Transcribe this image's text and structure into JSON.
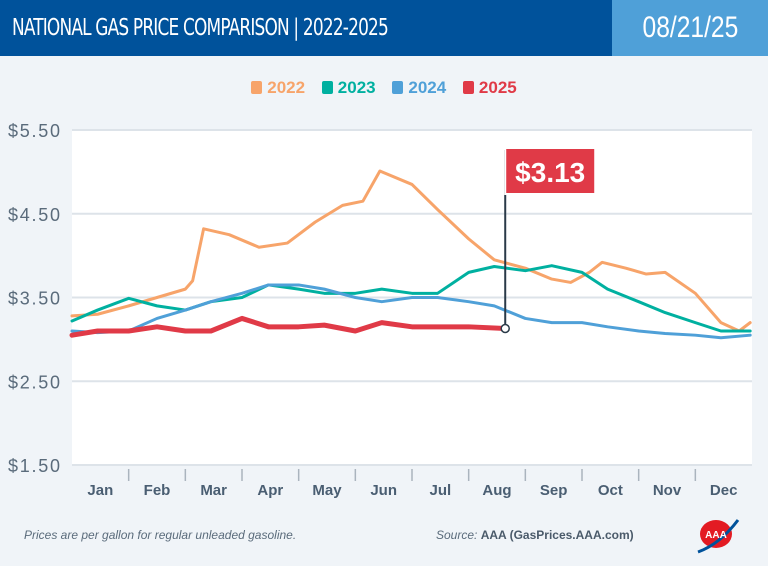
{
  "header": {
    "title": "NATIONAL GAS PRICE COMPARISON | 2022-2025",
    "date": "08/21/25"
  },
  "footer": {
    "note": "Prices are per gallon for regular unleaded gasoline.",
    "source_label": "Source:",
    "source": "AAA (GasPrices.AAA.com)",
    "logo": "AAA"
  },
  "chart_data": {
    "type": "line",
    "title": "NATIONAL GAS PRICE COMPARISON | 2022-2025",
    "ylim": [
      1.5,
      5.5
    ],
    "yticks": [
      "$5.50",
      "$4.50",
      "$3.50",
      "$2.50",
      "$1.50"
    ],
    "ytick_values": [
      5.5,
      4.5,
      3.5,
      2.5,
      1.5
    ],
    "categories": [
      "Jan",
      "Feb",
      "Mar",
      "Apr",
      "May",
      "Jun",
      "Jul",
      "Aug",
      "Sep",
      "Oct",
      "Nov",
      "Dec"
    ],
    "grid": true,
    "legend_position": "top",
    "callout": {
      "label": "$3.13",
      "date": "08-21",
      "value": 3.13,
      "color": "#e03a47"
    },
    "series": [
      {
        "name": "2022",
        "color": "#f7a46a",
        "points": [
          [
            "01-01",
            3.28
          ],
          [
            "01-15",
            3.3
          ],
          [
            "02-01",
            3.4
          ],
          [
            "02-15",
            3.5
          ],
          [
            "03-01",
            3.6
          ],
          [
            "03-05",
            3.7
          ],
          [
            "03-11",
            4.32
          ],
          [
            "03-25",
            4.25
          ],
          [
            "04-10",
            4.1
          ],
          [
            "04-25",
            4.15
          ],
          [
            "05-10",
            4.4
          ],
          [
            "05-25",
            4.6
          ],
          [
            "06-05",
            4.65
          ],
          [
            "06-14",
            5.01
          ],
          [
            "07-01",
            4.85
          ],
          [
            "07-15",
            4.55
          ],
          [
            "08-01",
            4.2
          ],
          [
            "08-15",
            3.95
          ],
          [
            "09-01",
            3.85
          ],
          [
            "09-15",
            3.72
          ],
          [
            "09-25",
            3.68
          ],
          [
            "10-05",
            3.8
          ],
          [
            "10-12",
            3.92
          ],
          [
            "10-25",
            3.85
          ],
          [
            "11-05",
            3.78
          ],
          [
            "11-15",
            3.8
          ],
          [
            "12-01",
            3.55
          ],
          [
            "12-15",
            3.2
          ],
          [
            "12-25",
            3.1
          ],
          [
            "12-31",
            3.2
          ]
        ]
      },
      {
        "name": "2023",
        "color": "#00b0a0",
        "points": [
          [
            "01-01",
            3.22
          ],
          [
            "01-15",
            3.35
          ],
          [
            "02-01",
            3.49
          ],
          [
            "02-15",
            3.4
          ],
          [
            "03-01",
            3.35
          ],
          [
            "03-15",
            3.45
          ],
          [
            "04-01",
            3.5
          ],
          [
            "04-15",
            3.65
          ],
          [
            "05-01",
            3.6
          ],
          [
            "05-15",
            3.55
          ],
          [
            "06-01",
            3.55
          ],
          [
            "06-15",
            3.6
          ],
          [
            "07-01",
            3.55
          ],
          [
            "07-15",
            3.55
          ],
          [
            "08-01",
            3.8
          ],
          [
            "08-15",
            3.87
          ],
          [
            "09-01",
            3.82
          ],
          [
            "09-15",
            3.88
          ],
          [
            "10-01",
            3.8
          ],
          [
            "10-15",
            3.6
          ],
          [
            "11-01",
            3.45
          ],
          [
            "11-15",
            3.32
          ],
          [
            "12-01",
            3.2
          ],
          [
            "12-15",
            3.1
          ],
          [
            "12-31",
            3.1
          ]
        ]
      },
      {
        "name": "2024",
        "color": "#4fa0d8",
        "points": [
          [
            "01-01",
            3.1
          ],
          [
            "01-15",
            3.08
          ],
          [
            "02-01",
            3.1
          ],
          [
            "02-15",
            3.25
          ],
          [
            "03-01",
            3.35
          ],
          [
            "03-15",
            3.45
          ],
          [
            "04-01",
            3.55
          ],
          [
            "04-15",
            3.65
          ],
          [
            "05-01",
            3.65
          ],
          [
            "05-15",
            3.6
          ],
          [
            "06-01",
            3.5
          ],
          [
            "06-15",
            3.45
          ],
          [
            "07-01",
            3.5
          ],
          [
            "07-15",
            3.5
          ],
          [
            "08-01",
            3.45
          ],
          [
            "08-15",
            3.4
          ],
          [
            "09-01",
            3.25
          ],
          [
            "09-15",
            3.2
          ],
          [
            "10-01",
            3.2
          ],
          [
            "10-15",
            3.15
          ],
          [
            "11-01",
            3.1
          ],
          [
            "11-15",
            3.07
          ],
          [
            "12-01",
            3.05
          ],
          [
            "12-15",
            3.02
          ],
          [
            "12-31",
            3.05
          ]
        ]
      },
      {
        "name": "2025",
        "color": "#e03a47",
        "points": [
          [
            "01-01",
            3.05
          ],
          [
            "01-15",
            3.1
          ],
          [
            "02-01",
            3.1
          ],
          [
            "02-15",
            3.15
          ],
          [
            "03-01",
            3.1
          ],
          [
            "03-15",
            3.1
          ],
          [
            "04-01",
            3.25
          ],
          [
            "04-15",
            3.15
          ],
          [
            "05-01",
            3.15
          ],
          [
            "05-15",
            3.17
          ],
          [
            "06-01",
            3.1
          ],
          [
            "06-15",
            3.2
          ],
          [
            "07-01",
            3.15
          ],
          [
            "07-15",
            3.15
          ],
          [
            "08-01",
            3.15
          ],
          [
            "08-21",
            3.13
          ]
        ]
      }
    ]
  }
}
